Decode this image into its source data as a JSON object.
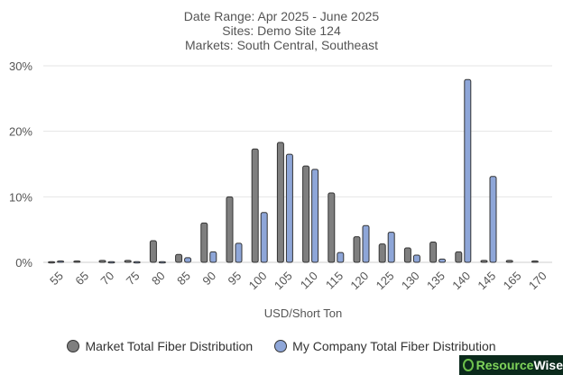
{
  "header": {
    "line1": "Date Range: Apr 2025 - June 2025",
    "line2": "Sites: Demo Site 124",
    "line3": "Markets: South Central, Southeast"
  },
  "colors": {
    "market": "#7f7f7f",
    "company": "#8ea6d8",
    "stroke": "#333333",
    "grid": "#e6e6e6"
  },
  "chart_data": {
    "type": "bar",
    "xlabel": "USD/Short Ton",
    "ylabel": "",
    "ylim": [
      0,
      30
    ],
    "yticks": [
      "0%",
      "10%",
      "20%",
      "30%"
    ],
    "grid": true,
    "legend_position": "bottom",
    "categories": [
      "55",
      "65",
      "70",
      "75",
      "80",
      "85",
      "90",
      "95",
      "100",
      "105",
      "110",
      "115",
      "120",
      "125",
      "130",
      "135",
      "140",
      "145",
      "165",
      "170"
    ],
    "series": [
      {
        "name": "Market Total Fiber Distribution",
        "values": [
          0.1,
          0.2,
          0.3,
          0.3,
          3.3,
          1.2,
          6.0,
          10.0,
          17.3,
          18.3,
          14.7,
          10.6,
          3.9,
          2.8,
          2.2,
          3.1,
          1.6,
          0.3,
          0.3,
          0.2
        ]
      },
      {
        "name": "My Company Total Fiber Distribution",
        "values": [
          0.2,
          0,
          0.1,
          0.1,
          0.1,
          0.7,
          1.6,
          2.9,
          7.6,
          16.5,
          14.2,
          1.5,
          5.6,
          4.6,
          1.1,
          0.5,
          27.9,
          13.1,
          0,
          0
        ]
      }
    ]
  },
  "legend": {
    "market_label": "Market Total Fiber Distribution",
    "company_label": "My Company Total Fiber Distribution"
  },
  "brand": {
    "part1": "Resource",
    "part2": "Wise"
  }
}
